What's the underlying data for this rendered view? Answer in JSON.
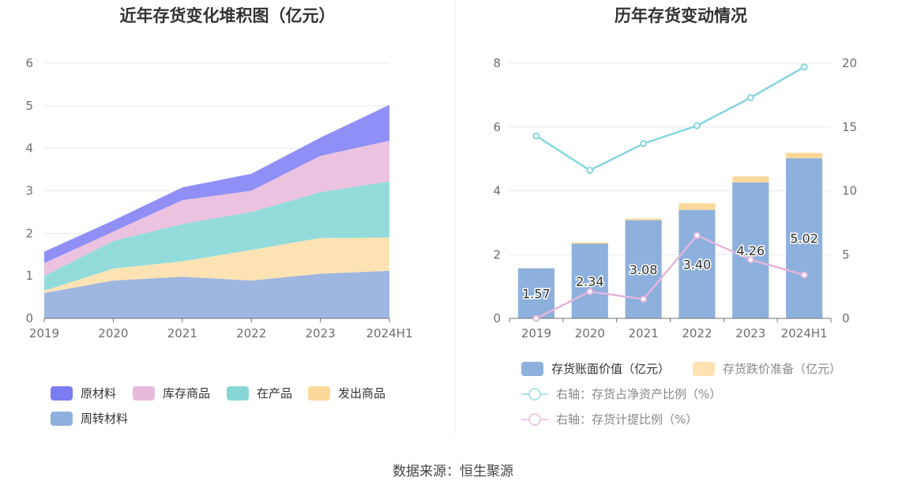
{
  "source_label": "数据来源：恒生聚源",
  "chart_data": [
    {
      "type": "area",
      "stacked": true,
      "title": "近年存货变化堆积图（亿元）",
      "categories": [
        "2019",
        "2020",
        "2021",
        "2022",
        "2023",
        "2024H1"
      ],
      "ylim": [
        0,
        6
      ],
      "y_ticks": [
        "0",
        "1",
        "2",
        "3",
        "4",
        "5",
        "6"
      ],
      "grid": true,
      "legend_position": "bottom",
      "series": [
        {
          "name": "周转材料",
          "color": "#9fb7e0",
          "values": [
            0.6,
            0.89,
            0.98,
            0.89,
            1.05,
            1.12
          ]
        },
        {
          "name": "发出商品",
          "color": "#fde3b3",
          "values": [
            0.05,
            0.28,
            0.36,
            0.72,
            0.84,
            0.78
          ]
        },
        {
          "name": "在产品",
          "color": "#94dcdc",
          "values": [
            0.35,
            0.65,
            0.88,
            0.89,
            1.08,
            1.32
          ]
        },
        {
          "name": "库存商品",
          "color": "#ebc2e0",
          "values": [
            0.3,
            0.22,
            0.56,
            0.5,
            0.85,
            0.96
          ]
        },
        {
          "name": "原材料",
          "color": "#8f8ff5",
          "values": [
            0.27,
            0.26,
            0.3,
            0.4,
            0.43,
            0.84
          ]
        }
      ],
      "legend_order": [
        "原材料",
        "库存商品",
        "在产品",
        "发出商品",
        "周转材料"
      ]
    },
    {
      "type": "bar",
      "title": "历年存货变动情况",
      "categories": [
        "2019",
        "2020",
        "2021",
        "2022",
        "2023",
        "2024H1"
      ],
      "ylim": [
        0,
        8
      ],
      "y_ticks": [
        "0",
        "2",
        "4",
        "6",
        "8"
      ],
      "y2lim": [
        0,
        20
      ],
      "y2_ticks": [
        "0",
        "5",
        "10",
        "15",
        "20"
      ],
      "grid": true,
      "legend_position": "bottom",
      "series": [
        {
          "name": "存货账面价值（亿元）",
          "kind": "bar",
          "color": "#8eb0dc",
          "values": [
            1.57,
            2.34,
            3.08,
            3.4,
            4.26,
            5.02
          ],
          "labels": [
            "1.57",
            "2.34",
            "3.08",
            "3.40",
            "4.26",
            "5.02"
          ]
        },
        {
          "name": "存货跌价准备（亿元）",
          "kind": "bar",
          "color": "#fcd99a",
          "values": [
            0.0,
            0.04,
            0.05,
            0.21,
            0.19,
            0.17
          ]
        },
        {
          "name": "右轴：存货占净资产比例（%）",
          "kind": "line",
          "axis": "right",
          "color": "#87d6db",
          "values": [
            14.3,
            11.6,
            13.7,
            15.1,
            17.3,
            19.7
          ]
        },
        {
          "name": "右轴：存货计提比例（%）",
          "kind": "line",
          "axis": "right",
          "color": "#e2b6de",
          "values": [
            0.0,
            2.1,
            1.5,
            6.5,
            4.6,
            3.4
          ]
        }
      ]
    }
  ]
}
